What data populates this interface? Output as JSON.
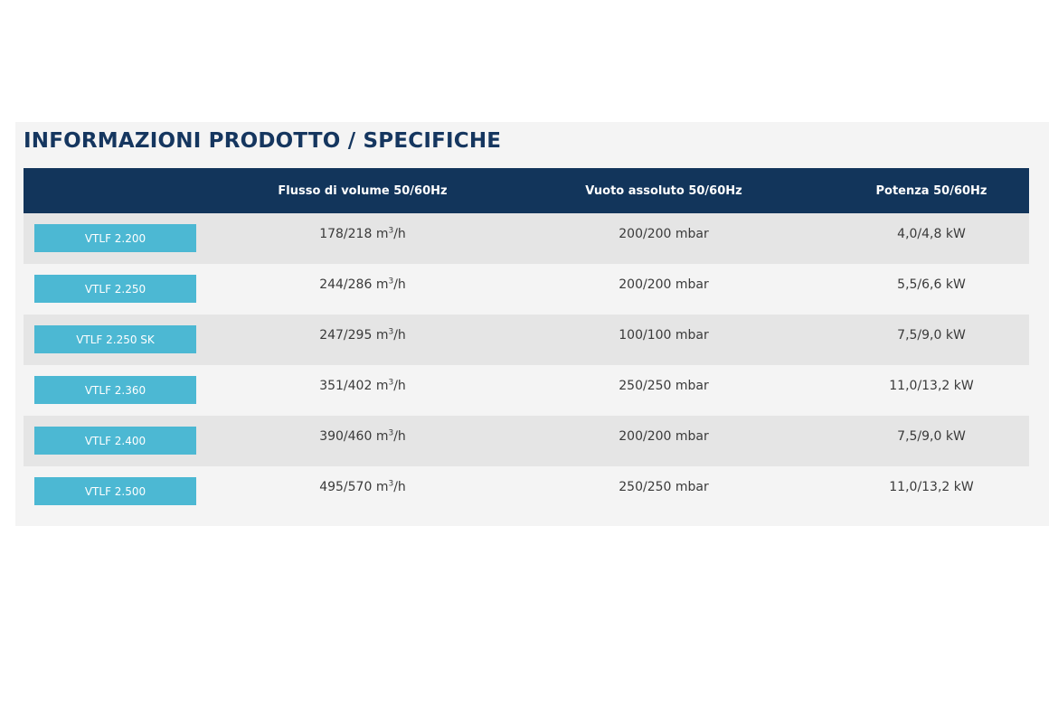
{
  "title": "INFORMAZIONI PRODOTTO / SPECIFICHE",
  "table": {
    "headers": [
      "",
      "Flusso di volume 50/60Hz",
      "Vuoto assoluto 50/60Hz",
      "Potenza 50/60Hz"
    ],
    "rows": [
      {
        "model": "VTLF 2.200",
        "flow": "178/218 m",
        "flow_unit_sup": "3",
        "flow_unit_tail": "/h",
        "vacuum": "200/200 mbar",
        "power": "4,0/4,8 kW"
      },
      {
        "model": "VTLF 2.250",
        "flow": "244/286 m",
        "flow_unit_sup": "3",
        "flow_unit_tail": "/h",
        "vacuum": "200/200 mbar",
        "power": "5,5/6,6 kW"
      },
      {
        "model": "VTLF 2.250 SK",
        "flow": "247/295 m",
        "flow_unit_sup": "3",
        "flow_unit_tail": "/h",
        "vacuum": "100/100 mbar",
        "power": "7,5/9,0 kW"
      },
      {
        "model": "VTLF 2.360",
        "flow": "351/402 m",
        "flow_unit_sup": "3",
        "flow_unit_tail": "/h",
        "vacuum": "250/250 mbar",
        "power": "11,0/13,2 kW"
      },
      {
        "model": "VTLF 2.400",
        "flow": "390/460 m",
        "flow_unit_sup": "3",
        "flow_unit_tail": "/h",
        "vacuum": "200/200 mbar",
        "power": "7,5/9,0 kW"
      },
      {
        "model": "VTLF 2.500",
        "flow": "495/570 m",
        "flow_unit_sup": "3",
        "flow_unit_tail": "/h",
        "vacuum": "250/250 mbar",
        "power": "11,0/13,2 kW"
      }
    ]
  },
  "colors": {
    "title": "#15365f",
    "header_bg": "#12355b",
    "model_button": "#4cb8d3",
    "row_shade": "#e5e5e5",
    "panel_bg": "#f4f4f4"
  }
}
